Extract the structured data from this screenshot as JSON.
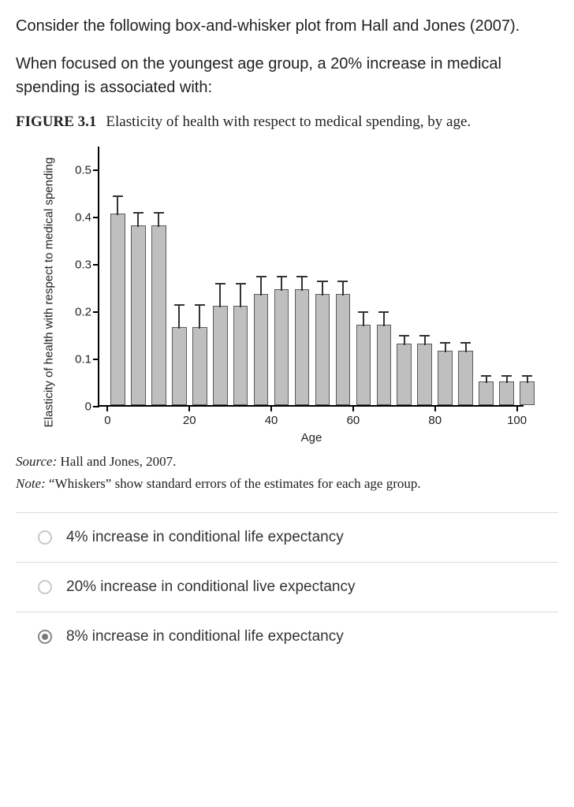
{
  "intro_text": "Consider the following box-and-whisker plot from Hall and Jones (2007).",
  "prompt_text": "When focused on the youngest age group, a 20% increase in medical spending is associated with:",
  "figure": {
    "number": "FIGURE 3.1",
    "caption": "Elasticity of health with respect to medical spending, by age.",
    "ylabel": "Elasticity of health with respect to medical spending",
    "xlabel": "Age",
    "type": "bar_with_whiskers",
    "ylim": [
      0,
      0.55
    ],
    "yticks": [
      0,
      0.1,
      0.2,
      0.3,
      0.4,
      0.5
    ],
    "ytick_labels": [
      "0",
      "0.1",
      "0.2",
      "0.3",
      "0.4",
      "0.5"
    ],
    "xlim": [
      -2,
      102
    ],
    "xticks": [
      0,
      20,
      40,
      60,
      80,
      100
    ],
    "xtick_labels": [
      "0",
      "20",
      "40",
      "60",
      "80",
      "100"
    ],
    "bar_fill": "#bfbfbf",
    "bar_border": "#5a5a5a",
    "whisker_color": "#333333",
    "bar_width_age_units": 3.6,
    "bar_gap_age_units": 5,
    "bars": [
      {
        "age": 2.5,
        "value": 0.405,
        "se": 0.04
      },
      {
        "age": 7.5,
        "value": 0.38,
        "se": 0.03
      },
      {
        "age": 12.5,
        "value": 0.38,
        "se": 0.03
      },
      {
        "age": 17.5,
        "value": 0.165,
        "se": 0.05
      },
      {
        "age": 22.5,
        "value": 0.165,
        "se": 0.05
      },
      {
        "age": 27.5,
        "value": 0.21,
        "se": 0.05
      },
      {
        "age": 32.5,
        "value": 0.21,
        "se": 0.05
      },
      {
        "age": 37.5,
        "value": 0.235,
        "se": 0.04
      },
      {
        "age": 42.5,
        "value": 0.245,
        "se": 0.03
      },
      {
        "age": 47.5,
        "value": 0.245,
        "se": 0.03
      },
      {
        "age": 52.5,
        "value": 0.235,
        "se": 0.03
      },
      {
        "age": 57.5,
        "value": 0.235,
        "se": 0.03
      },
      {
        "age": 62.5,
        "value": 0.17,
        "se": 0.03
      },
      {
        "age": 67.5,
        "value": 0.17,
        "se": 0.03
      },
      {
        "age": 72.5,
        "value": 0.13,
        "se": 0.02
      },
      {
        "age": 77.5,
        "value": 0.13,
        "se": 0.02
      },
      {
        "age": 82.5,
        "value": 0.115,
        "se": 0.02
      },
      {
        "age": 87.5,
        "value": 0.115,
        "se": 0.02
      },
      {
        "age": 92.5,
        "value": 0.05,
        "se": 0.015
      },
      {
        "age": 97.5,
        "value": 0.05,
        "se": 0.015
      },
      {
        "age": 102.5,
        "value": 0.05,
        "se": 0.015
      }
    ],
    "source_label": "Source:",
    "source_text": " Hall and Jones, 2007.",
    "note_label": "Note:",
    "note_text": " “Whiskers” show standard errors of the estimates for each age group."
  },
  "options": [
    {
      "label": "4% increase in conditional life expectancy",
      "selected": false
    },
    {
      "label": "20% increase in conditional live expectancy",
      "selected": false
    },
    {
      "label": "8% increase in conditional life expectancy",
      "selected": true
    }
  ]
}
